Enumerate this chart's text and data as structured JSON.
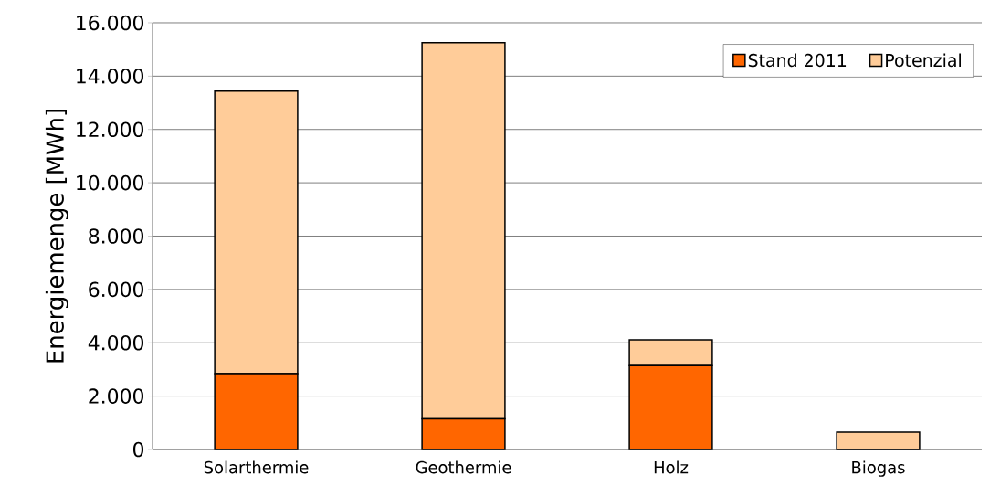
{
  "chart_data": {
    "type": "bar",
    "stacked": true,
    "ylabel": "Energiemenge [MWh]",
    "categories": [
      "Solarthermie",
      "Geothermie",
      "Holz",
      "Biogas"
    ],
    "series": [
      {
        "name": "Stand 2011",
        "color": "#ff6600",
        "values": [
          2840,
          1150,
          3140,
          0
        ]
      },
      {
        "name": "Potenzial",
        "color": "#ffcc99",
        "values": [
          10600,
          14100,
          970,
          650
        ]
      }
    ],
    "ylim": [
      0,
      16000
    ],
    "yticks": [
      {
        "value": 0,
        "label": "0"
      },
      {
        "value": 2000,
        "label": "2.000"
      },
      {
        "value": 4000,
        "label": "4.000"
      },
      {
        "value": 6000,
        "label": "6.000"
      },
      {
        "value": 8000,
        "label": "8.000"
      },
      {
        "value": 10000,
        "label": "10.000"
      },
      {
        "value": 12000,
        "label": "12.000"
      },
      {
        "value": 14000,
        "label": "14.000"
      },
      {
        "value": 16000,
        "label": "16.000"
      }
    ],
    "grid": "y",
    "legend": "top right"
  }
}
